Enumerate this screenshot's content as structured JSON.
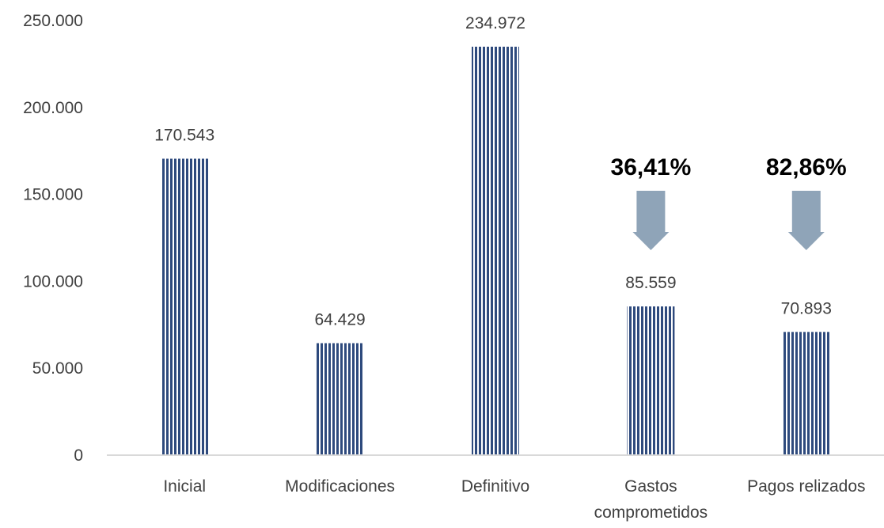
{
  "colors": {
    "bar": "#2E4A7D",
    "arrow": "#8FA4B8",
    "axis": "#D9D9D9",
    "text": "#404040"
  },
  "chart_data": {
    "type": "bar",
    "categories": [
      [
        "Inicial"
      ],
      [
        "Modificaciones"
      ],
      [
        "Definitivo"
      ],
      [
        "Gastos",
        "comprometidos"
      ],
      [
        "Pagos relizados"
      ]
    ],
    "values": [
      170543,
      64429,
      234972,
      85559,
      70893
    ],
    "data_labels": [
      "170.543",
      "64.429",
      "234.972",
      "85.559",
      "70.893"
    ],
    "ylim": [
      0,
      250000
    ],
    "yticks": [
      0,
      50000,
      100000,
      150000,
      200000,
      250000
    ],
    "ytick_labels": [
      "0",
      "50.000",
      "100.000",
      "150.000",
      "200.000",
      "250.000"
    ],
    "grid": false,
    "bar_pattern": "vertical-stripes",
    "annotations": [
      {
        "category_index": 3,
        "text": "36,41%",
        "shape": "down-arrow"
      },
      {
        "category_index": 4,
        "text": "82,86%",
        "shape": "down-arrow"
      }
    ]
  }
}
